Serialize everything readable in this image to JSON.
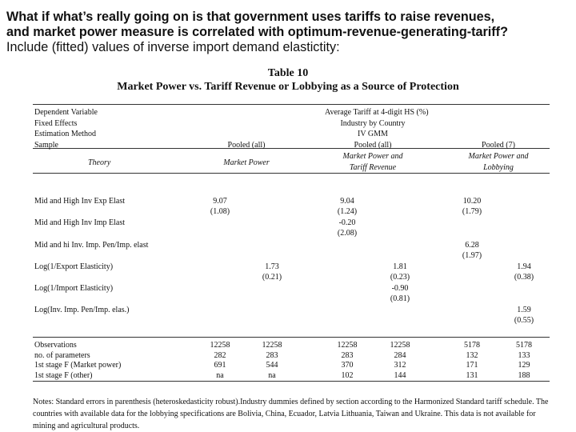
{
  "header": {
    "line1": "What if what’s really going on is that government uses tariffs to raise revenues,",
    "line2": "and market power measure is correlated with optimum-revenue-generating-tariff?",
    "line3": "Include (fitted) values of inverse import demand elastictity:"
  },
  "table": {
    "number": "Table 10",
    "title": "Market Power vs. Tariff Revenue or Lobbying as a Source of Protection",
    "spec_labels": [
      "Dependent Variable",
      "Fixed Effects",
      "Estimation Method",
      "Sample"
    ],
    "spec_middle": [
      "Average Tariff at 4-digit HS (%)",
      "Industry by Country",
      "IV GMM",
      "Pooled (all)"
    ],
    "sample_left": "Pooled (all)",
    "sample_right": "Pooled (7)",
    "theory_label": "Theory",
    "theory_left": "Market Power",
    "theory_mid": [
      "Market Power and",
      "Tariff Revenue"
    ],
    "theory_right": [
      "Market Power and",
      "Lobbying"
    ],
    "rows": [
      {
        "label": "Mid and High Inv Exp Elast",
        "c1": [
          "9.07",
          "(1.08)"
        ],
        "c3": [
          "9.04",
          "(1.24)"
        ],
        "c5": [
          "10.20",
          "(1.79)"
        ]
      },
      {
        "label": "Mid and High Inv Imp Elast",
        "c3": [
          "-0.20",
          "(2.08)"
        ]
      },
      {
        "label": "Mid and hi Inv. Imp. Pen/Imp. elast",
        "c5": [
          "6.28",
          "(1.97)"
        ]
      },
      {
        "label": "Log(1/Export Elasticity)",
        "c2": [
          "1.73",
          "(0.21)"
        ],
        "c4": [
          "1.81",
          "(0.23)"
        ],
        "c6": [
          "1.94",
          "(0.38)"
        ]
      },
      {
        "label": "Log(1/Import Elasticity)",
        "c4": [
          "-0.90",
          "(0.81)"
        ]
      },
      {
        "label": "Log(Inv. Imp. Pen/Imp. elas.)",
        "c6": [
          "1.59",
          "(0.55)"
        ]
      }
    ],
    "stats": [
      {
        "label": "Observations",
        "values": [
          "12258",
          "12258",
          "12258",
          "12258",
          "5178",
          "5178"
        ]
      },
      {
        "label": "no. of parameters",
        "values": [
          "282",
          "283",
          "283",
          "284",
          "132",
          "133"
        ]
      },
      {
        "label": "1st stage F (Market power)",
        "values": [
          "691",
          "544",
          "370",
          "312",
          "171",
          "129"
        ]
      },
      {
        "label": "1st stage F (other)",
        "values": [
          "na",
          "na",
          "102",
          "144",
          "131",
          "188"
        ]
      }
    ],
    "notes": "Notes: Standard errors in parenthesis (heteroskedasticity robust).Industry dummies defined by section according to the Harmonized Standard tariff schedule. The countries with available data for the lobbying specifications are Bolivia, China, Ecuador, Latvia Lithuania, Taiwan and Ukraine. This data is not available for mining and agricultural products."
  }
}
